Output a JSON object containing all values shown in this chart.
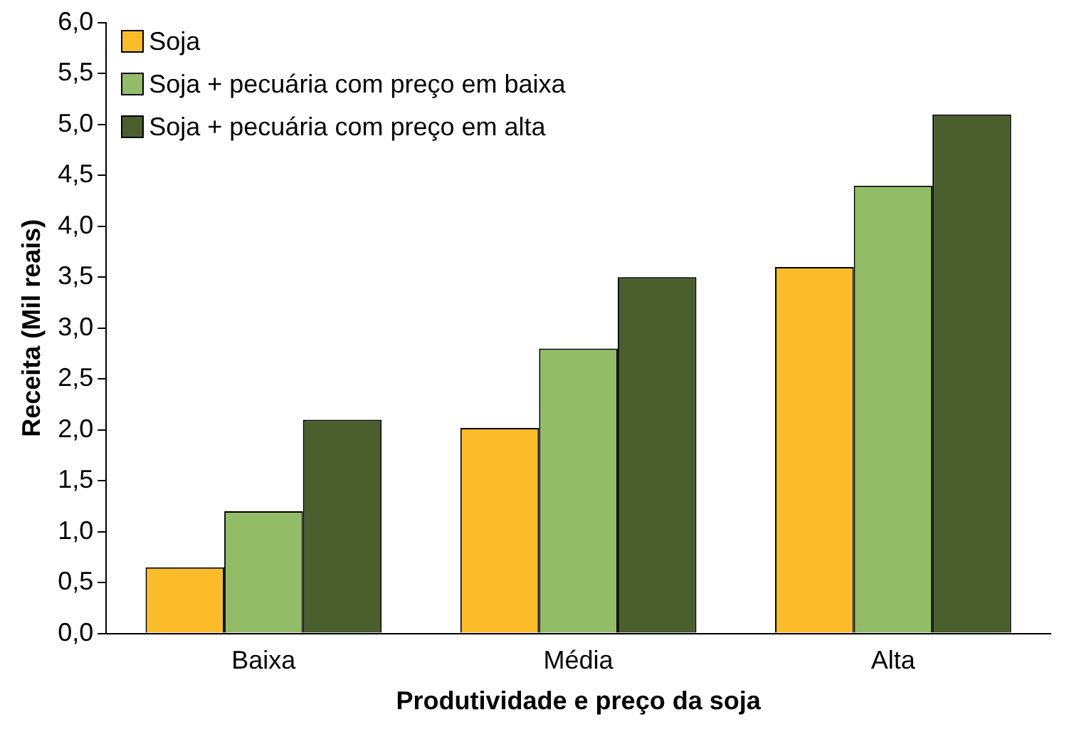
{
  "chart_data": {
    "type": "bar",
    "xlabel": "Produtividade e preço da soja",
    "ylabel": "Receita (Mil reais)",
    "categories": [
      "Baixa",
      "Média",
      "Alta"
    ],
    "series": [
      {
        "name": "Soja",
        "color": "#fbbc2c",
        "values": [
          0.65,
          2.02,
          3.6
        ]
      },
      {
        "name": "Soja + pecuária com preço em baixa",
        "color": "#92bc68",
        "values": [
          1.2,
          2.8,
          4.4
        ]
      },
      {
        "name": "Soja + pecuária com preço em alta",
        "color": "#4a5e2e",
        "values": [
          2.1,
          3.5,
          5.1
        ]
      }
    ],
    "ylim": [
      0,
      6
    ],
    "yticks": [
      {
        "value": 0,
        "label": "0,0"
      },
      {
        "value": 0.5,
        "label": "0,5"
      },
      {
        "value": 1,
        "label": "1,0"
      },
      {
        "value": 1.5,
        "label": "1,5"
      },
      {
        "value": 2,
        "label": "2,0"
      },
      {
        "value": 2.5,
        "label": "2,5"
      },
      {
        "value": 3,
        "label": "3,0"
      },
      {
        "value": 3.5,
        "label": "3,5"
      },
      {
        "value": 4,
        "label": "4,0"
      },
      {
        "value": 4.5,
        "label": "4,5"
      },
      {
        "value": 5,
        "label": "5,0"
      },
      {
        "value": 5.5,
        "label": "5,5"
      },
      {
        "value": 6,
        "label": "6,0"
      }
    ],
    "grid": false,
    "legend": "top left"
  }
}
